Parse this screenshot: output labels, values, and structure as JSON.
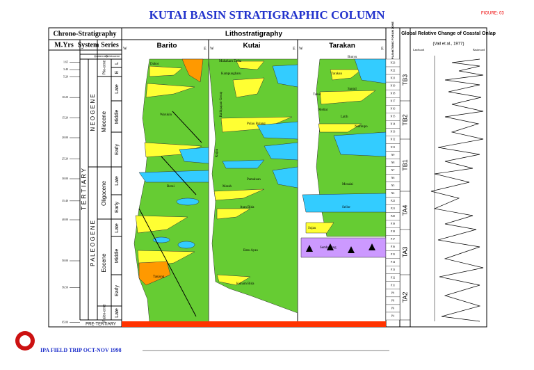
{
  "header": {
    "title": "KUTAI BASIN STRATIGRAPHIC COLUMN",
    "figure": "FIGURE: 03"
  },
  "footer": {
    "text": "IPA FIELD TRIP OCT-NOV 1998"
  },
  "chrono": {
    "heading": "Chrono-Stratigraphy",
    "columns": [
      "M.Yrs",
      "System",
      "Series"
    ],
    "ages": [
      "1.65",
      "3.40",
      "5.20",
      "10.20",
      "15.20",
      "20.00",
      "25.20",
      "30.00",
      "35.40",
      "40.00",
      "50.00",
      "56.50",
      "65.00"
    ],
    "tertiary": "T E R T I A R Y",
    "quaternary": "Quaternary",
    "pleistocene": "Pleistocene",
    "neogene": "N E O G E N E",
    "paleogene": "P A L E O G E N E",
    "epochs": [
      "Plio-cene",
      "Miocene",
      "Oligocene",
      "Eocene",
      "Paleo-cene"
    ],
    "subepochs": [
      "E",
      "L",
      "Late",
      "Middle",
      "Early",
      "Late",
      "Early",
      "Late",
      "Middle",
      "Early",
      "Late"
    ],
    "pre_tertiary": "PRE-TERTIARY"
  },
  "litho": {
    "heading": "Lithostratigraphy",
    "west": "W",
    "east": "E",
    "basins": [
      {
        "name": "Barito",
        "formations": [
          "Dahor",
          "Warukin",
          "Berai",
          "Tanjung"
        ]
      },
      {
        "name": "Kutai",
        "formations": [
          "Mahakam Delta",
          "Kampungbaru",
          "Balikpapan Group",
          "Pulau Balang",
          "Kujau",
          "Pamaluan",
          "Marah",
          "Atan Bida",
          "Batu Ayau",
          "Kuham Bida"
        ]
      },
      {
        "name": "Tarakan",
        "formations": [
          "Bunyu",
          "Tarakan",
          "Tabul",
          "Santul",
          "Meliat",
          "Latih",
          "Naintupo",
          "Seilor",
          "Mesalai",
          "Sujau",
          "Sembakung"
        ]
      }
    ]
  },
  "foram": {
    "heading": "PLANKTONIC FORAM ZONE",
    "zones": [
      "N23",
      "N22",
      "N21",
      "N19",
      "N18",
      "N17",
      "N16",
      "N15",
      "N14",
      "N13",
      "N12",
      "N11",
      "N9",
      "N8",
      "N7",
      "N6",
      "N5",
      "N4",
      "P22",
      "P21",
      "P20",
      "P19",
      "P18",
      "P17",
      "P16",
      "P15",
      "P14",
      "P13",
      "P12",
      "P11",
      "P9",
      "P8",
      "P6",
      "P4"
    ]
  },
  "onlap": {
    "title": "Global Relative Change of Coastal Onlap",
    "source": "(Vail et al., 1977)",
    "landward": "Landward",
    "basinward": "Basinward",
    "sequences": [
      "TB3",
      "TB2",
      "TB1",
      "TA4",
      "TA3",
      "TA2"
    ]
  }
}
